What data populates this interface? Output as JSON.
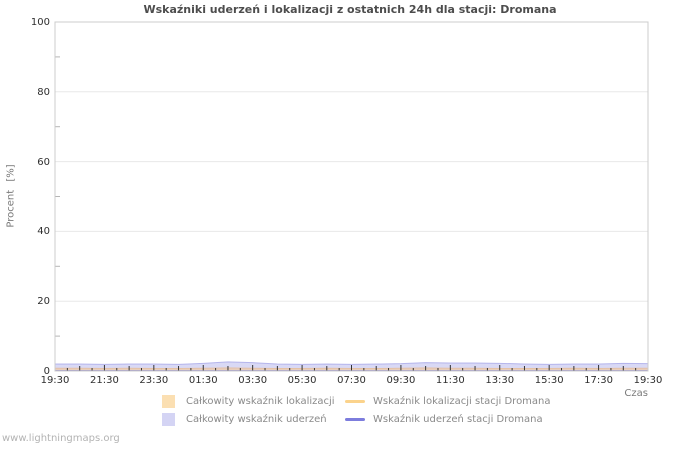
{
  "title": "Wskaźniki uderzeń i lokalizacji z ostatnich 24h dla stacji: Dromana",
  "watermark": "www.lightningmaps.org",
  "axes": {
    "y_label": "Procent [%]",
    "x_label": "Czas"
  },
  "chart_data": {
    "type": "area",
    "title": "Wskaźniki uderzeń i lokalizacji z ostatnich 24h dla stacji: Dromana",
    "xlabel": "Czas",
    "ylabel": "Procent [%]",
    "ylim": [
      0,
      100
    ],
    "grid": true,
    "legend_position": "bottom",
    "x_ticks": [
      "19:30",
      "21:30",
      "23:30",
      "01:30",
      "03:30",
      "05:30",
      "07:30",
      "09:30",
      "11:30",
      "13:30",
      "15:30",
      "17:30",
      "19:30"
    ],
    "y_ticks": [
      0,
      20,
      40,
      60,
      80,
      100
    ],
    "y_minor_ticks": [
      10,
      30,
      50,
      70,
      90
    ],
    "series": [
      {
        "name": "Całkowity wskaźnik uderzeń",
        "type": "area",
        "color": "#9e9ee6",
        "fill": "#8989e0",
        "values": [
          2.0,
          2.0,
          1.9,
          2.0,
          2.0,
          1.9,
          2.2,
          2.6,
          2.4,
          2.0,
          1.9,
          2.0,
          1.9,
          2.0,
          2.1,
          2.4,
          2.3,
          2.3,
          2.2,
          2.0,
          1.9,
          2.0,
          2.0,
          2.2,
          2.1
        ]
      },
      {
        "name": "Całkowity wskaźnik lokalizacji",
        "type": "area",
        "color": "#e6b98f",
        "fill": "#f5b878",
        "values": [
          0.8,
          0.8,
          0.7,
          0.8,
          0.7,
          0.7,
          0.8,
          0.9,
          0.8,
          0.7,
          0.7,
          0.8,
          0.7,
          0.7,
          0.8,
          0.9,
          0.8,
          0.8,
          0.7,
          0.7,
          0.7,
          0.8,
          0.7,
          0.8,
          0.8
        ]
      },
      {
        "name": "Wskaźnik lokalizacji stacji Dromana",
        "type": "line",
        "color": "#fbd38c",
        "values": [
          0.2,
          0.2,
          0.2,
          0.2,
          0.2,
          0.2,
          0.2,
          0.2,
          0.2,
          0.2,
          0.2,
          0.2,
          0.2,
          0.2,
          0.2,
          0.2,
          0.2,
          0.2,
          0.2,
          0.2,
          0.2,
          0.2,
          0.2,
          0.2,
          0.2
        ]
      },
      {
        "name": "Wskaźnik uderzeń stacji Dromana",
        "type": "line",
        "color": "#7d7ddd",
        "values": [
          0.1,
          0.1,
          0.1,
          0.1,
          0.1,
          0.1,
          0.1,
          0.1,
          0.1,
          0.1,
          0.1,
          0.1,
          0.1,
          0.1,
          0.1,
          0.1,
          0.1,
          0.1,
          0.1,
          0.1,
          0.1,
          0.1,
          0.1,
          0.1,
          0.1
        ]
      }
    ]
  },
  "legend": {
    "columns": [
      [
        {
          "label": "Całkowity wskaźnik lokalizacji",
          "swatch": "box",
          "color": "#fbdfb2"
        },
        {
          "label": "Całkowity wskaźnik uderzeń",
          "swatch": "box",
          "color": "#d4d4f4"
        }
      ],
      [
        {
          "label": "Wskaźnik lokalizacji stacji Dromana",
          "swatch": "line",
          "color": "#fbd38c"
        },
        {
          "label": "Wskaźnik uderzeń stacji Dromana",
          "swatch": "line",
          "color": "#7d7ddd"
        }
      ]
    ]
  }
}
